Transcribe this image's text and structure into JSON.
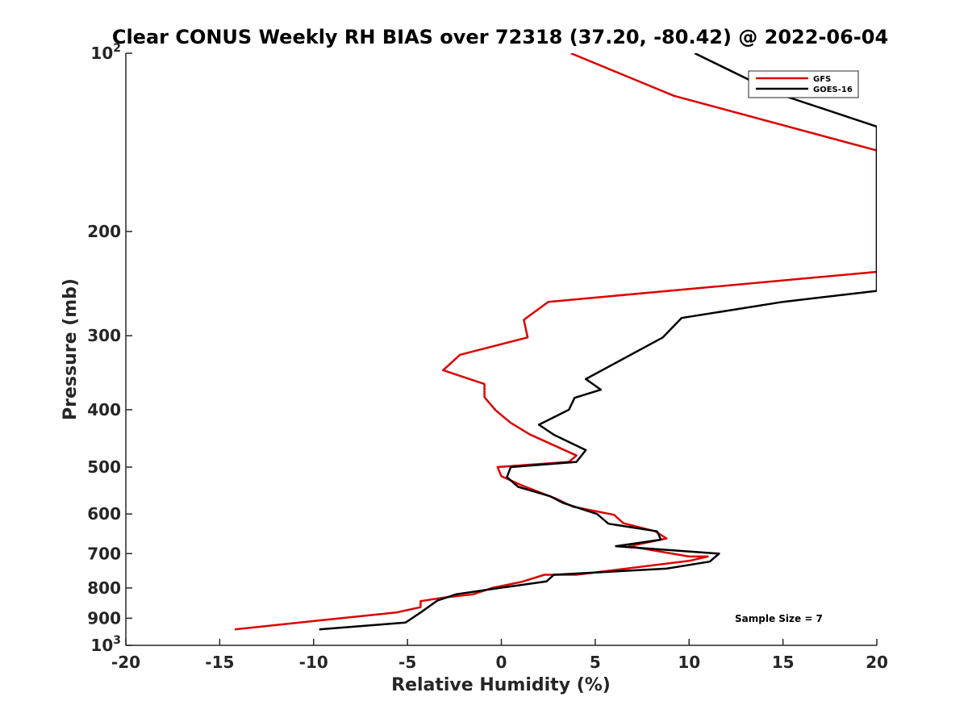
{
  "chart_data": {
    "type": "line",
    "title": "Clear CONUS Weekly RH BIAS over 72318 (37.20, -80.42) @ 2022-06-04",
    "xlabel": "Relative Humidity (%)",
    "ylabel": "Pressure (mb)",
    "xlim": [
      -20,
      20
    ],
    "ylim": [
      100,
      1000
    ],
    "y_scale": "log",
    "y_reversed": true,
    "grid": false,
    "legend_position": "top-right",
    "x_ticks": [
      "-20",
      "-15",
      "-10",
      "-5",
      "0",
      "5",
      "10",
      "15",
      "20"
    ],
    "y_ticks": [
      {
        "value": 100,
        "base": "10",
        "exp": "2"
      },
      {
        "value": 200,
        "label": "200"
      },
      {
        "value": 300,
        "label": "300"
      },
      {
        "value": 400,
        "label": "400"
      },
      {
        "value": 500,
        "label": "500"
      },
      {
        "value": 600,
        "label": "600"
      },
      {
        "value": 700,
        "label": "700"
      },
      {
        "value": 800,
        "label": "800"
      },
      {
        "value": 900,
        "label": "900"
      },
      {
        "value": 1000,
        "base": "10",
        "exp": "3"
      }
    ],
    "annotation": "Sample Size = 7",
    "series": [
      {
        "name": "GFS",
        "color": "#dd0000",
        "points": [
          [
            3.7,
            100
          ],
          [
            9.2,
            118
          ],
          [
            20,
            146
          ],
          [
            20,
            234
          ],
          [
            2.5,
            263
          ],
          [
            1.2,
            282
          ],
          [
            1.4,
            302
          ],
          [
            -2.2,
            323
          ],
          [
            -3.1,
            343
          ],
          [
            -0.9,
            362
          ],
          [
            -0.9,
            381
          ],
          [
            -0.3,
            401
          ],
          [
            0.5,
            421
          ],
          [
            1.5,
            440
          ],
          [
            4,
            478
          ],
          [
            3.6,
            490
          ],
          [
            -0.2,
            500
          ],
          [
            0,
            518
          ],
          [
            1.1,
            537
          ],
          [
            2.9,
            565
          ],
          [
            3.8,
            583
          ],
          [
            6,
            602
          ],
          [
            6.5,
            622
          ],
          [
            8.2,
            642
          ],
          [
            8.8,
            660
          ],
          [
            6.8,
            680
          ],
          [
            10,
            708
          ],
          [
            11,
            708
          ],
          [
            10,
            720
          ],
          [
            4,
            760
          ],
          [
            2.3,
            760
          ],
          [
            1.1,
            781
          ],
          [
            -0.5,
            800
          ],
          [
            -1.5,
            820
          ],
          [
            -3,
            830
          ],
          [
            -4.3,
            842
          ],
          [
            -4.3,
            862
          ],
          [
            -5.6,
            880
          ],
          [
            -10,
            910
          ],
          [
            -14.2,
            940
          ]
        ]
      },
      {
        "name": "GOES-16",
        "color": "#000000",
        "points": [
          [
            10.3,
            100
          ],
          [
            14.7,
            117
          ],
          [
            20,
            133
          ],
          [
            20,
            252
          ],
          [
            15,
            263
          ],
          [
            9.6,
            280
          ],
          [
            8.6,
            302
          ],
          [
            4.5,
            355
          ],
          [
            5.3,
            370
          ],
          [
            3.9,
            382
          ],
          [
            3.6,
            400
          ],
          [
            2,
            424
          ],
          [
            2.8,
            441
          ],
          [
            4.5,
            468
          ],
          [
            4,
            490
          ],
          [
            0.5,
            500
          ],
          [
            0.3,
            520
          ],
          [
            0.9,
            540
          ],
          [
            2.6,
            560
          ],
          [
            3.3,
            575
          ],
          [
            5.1,
            600
          ],
          [
            5.7,
            623
          ],
          [
            8.3,
            642
          ],
          [
            8.5,
            663
          ],
          [
            6.1,
            680
          ],
          [
            11.6,
            700
          ],
          [
            11.1,
            722
          ],
          [
            8.8,
            742
          ],
          [
            2.8,
            760
          ],
          [
            2.4,
            780
          ],
          [
            -0.1,
            800
          ],
          [
            -2.4,
            820
          ],
          [
            -3.4,
            840
          ],
          [
            -4.3,
            880
          ],
          [
            -5.1,
            915
          ],
          [
            -9.7,
            940
          ]
        ]
      }
    ]
  }
}
